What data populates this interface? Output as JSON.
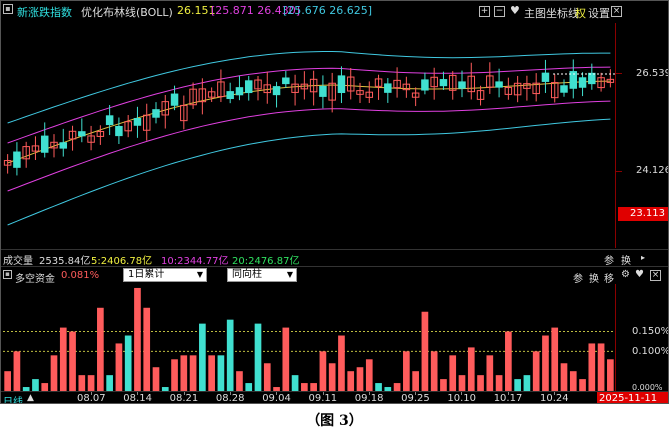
{
  "header": {
    "index_name": "新涨跌指数",
    "indicator_name": "优化布林线(BOLL)",
    "boll_mid": "26.151",
    "boll_upper_lower": "[25.871 26.430]",
    "boll_band": "[25.676 26.625]",
    "main_label": "主图",
    "coord_label": "坐标线",
    "quan_label": "权",
    "settings_label": "设置"
  },
  "price_axis": {
    "top_label": "26.539",
    "mid_label": "24.126",
    "bottom_label": "23.113"
  },
  "volume_bar": {
    "title": "成交量",
    "total": "2535.84亿",
    "ma5": "5:2406.78亿",
    "ma10": "10:2344.77亿",
    "ma20": "20:2476.87亿",
    "btn1": "参",
    "btn2": "换"
  },
  "fund_bar": {
    "title": "多空资金",
    "value": "0.081%",
    "select1": "1日累计",
    "select2": "同向柱",
    "btn1": "参",
    "btn2": "换",
    "btn3": "移"
  },
  "fund_axis": {
    "upper": "0.150%",
    "middle": "0.100%",
    "lower": "0.000%"
  },
  "bottom": {
    "period": "日线",
    "dates": [
      "08.07",
      "08.14",
      "08.21",
      "08.28",
      "09.04",
      "09.11",
      "09.18",
      "09.25",
      "10.10",
      "10.17",
      "10.24"
    ],
    "current_date": "2025-11-11"
  },
  "caption": "（图 3）",
  "colors": {
    "up": "#ff5c5c",
    "down": "#40e0d0",
    "upper_band": "#40c8e0",
    "mid_band": "#e0c040",
    "lower_band": "#e040e0",
    "cyan_text": "#30e0e0",
    "yellow_text": "#f0f040"
  },
  "chart_data": {
    "type": "bar",
    "title": "多空资金",
    "ylim": [
      0,
      0.0027
    ],
    "y_ticks": [
      0.0015,
      0.001
    ],
    "values": [
      0.0005,
      0.001,
      0.0001,
      0.0003,
      0.0002,
      0.0009,
      0.0016,
      0.0015,
      0.0004,
      0.0004,
      0.0021,
      0.0004,
      0.0012,
      0.0014,
      0.0026,
      0.0021,
      0.0006,
      0.0001,
      0.0008,
      0.0009,
      0.0009,
      0.0017,
      0.0009,
      0.0009,
      0.0018,
      0.0005,
      0.0002,
      0.0017,
      0.0007,
      0.0001,
      0.0016,
      0.0004,
      0.0002,
      0.0002,
      0.001,
      0.0007,
      0.0014,
      0.0005,
      0.0006,
      0.0008,
      0.0002,
      0.0001,
      0.0002,
      0.001,
      0.0005,
      0.002,
      0.001,
      0.0003,
      0.0009,
      0.0004,
      0.0011,
      0.0004,
      0.0009,
      0.0004,
      0.0015,
      0.0003,
      0.0004,
      0.001,
      0.0014,
      0.0016,
      0.0007,
      0.0005,
      0.0003,
      0.0012,
      0.0012,
      0.0008
    ],
    "direction": [
      "up",
      "up",
      "down",
      "down",
      "up",
      "up",
      "up",
      "up",
      "up",
      "up",
      "up",
      "down",
      "up",
      "down",
      "up",
      "up",
      "up",
      "down",
      "up",
      "up",
      "up",
      "down",
      "up",
      "down",
      "down",
      "up",
      "down",
      "down",
      "up",
      "up",
      "up",
      "down",
      "up",
      "up",
      "up",
      "up",
      "up",
      "up",
      "up",
      "up",
      "down",
      "down",
      "up",
      "up",
      "up",
      "up",
      "up",
      "up",
      "up",
      "up",
      "up",
      "up",
      "up",
      "up",
      "up",
      "down",
      "down",
      "up",
      "up",
      "up",
      "up",
      "up",
      "up",
      "up",
      "up",
      "up"
    ]
  }
}
